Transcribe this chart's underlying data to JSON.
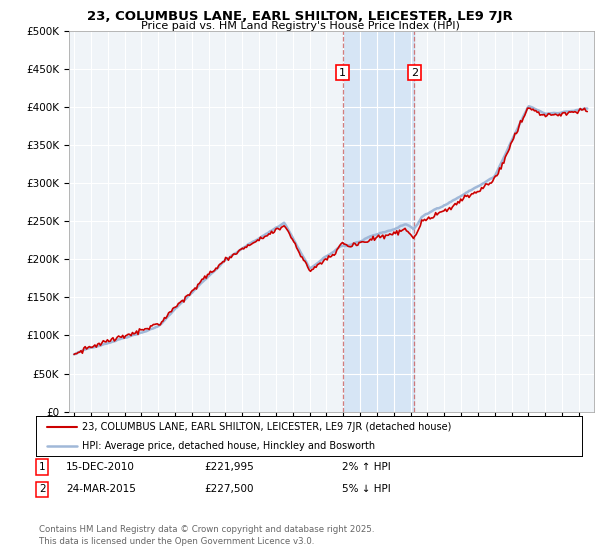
{
  "title_line1": "23, COLUMBUS LANE, EARL SHILTON, LEICESTER, LE9 7JR",
  "title_line2": "Price paid vs. HM Land Registry's House Price Index (HPI)",
  "ylim": [
    0,
    500000
  ],
  "yticks": [
    0,
    50000,
    100000,
    150000,
    200000,
    250000,
    300000,
    350000,
    400000,
    450000,
    500000
  ],
  "ytick_labels": [
    "£0",
    "£50K",
    "£100K",
    "£150K",
    "£200K",
    "£250K",
    "£300K",
    "£350K",
    "£400K",
    "£450K",
    "£500K"
  ],
  "hpi_color": "#a0b8d8",
  "price_color": "#cc0000",
  "marker1_x": 2010.96,
  "marker2_x": 2015.23,
  "legend_line1": "23, COLUMBUS LANE, EARL SHILTON, LEICESTER, LE9 7JR (detached house)",
  "legend_line2": "HPI: Average price, detached house, Hinckley and Bosworth",
  "table_row1": [
    "1",
    "15-DEC-2010",
    "£221,995",
    "2% ↑ HPI"
  ],
  "table_row2": [
    "2",
    "24-MAR-2015",
    "£227,500",
    "5% ↓ HPI"
  ],
  "footer": "Contains HM Land Registry data © Crown copyright and database right 2025.\nThis data is licensed under the Open Government Licence v3.0.",
  "bg_color": "#ffffff",
  "plot_bg_color": "#f0f4f8",
  "grid_color": "#ffffff",
  "shade_color": "#cce0f5",
  "sale1_price": 221995,
  "sale2_price": 227500
}
